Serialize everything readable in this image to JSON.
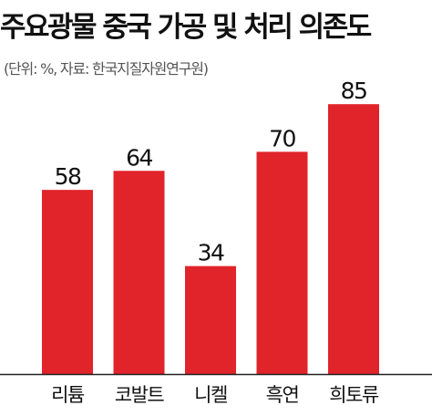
{
  "chart_data": {
    "type": "bar",
    "title": "주요광물 중국 가공 및 처리 의존도",
    "subtitle": "(단위: %, 자료: 한국지질자원연구원)",
    "categories": [
      "리튬",
      "코발트",
      "니켈",
      "흑연",
      "희토류"
    ],
    "values": [
      58,
      64,
      34,
      70,
      85
    ],
    "ylim": [
      0,
      100
    ],
    "xlabel": "",
    "ylabel": "",
    "grid": false,
    "show_data_labels": true,
    "colors": {
      "bar": "#e1232a",
      "text": "#111111"
    }
  }
}
